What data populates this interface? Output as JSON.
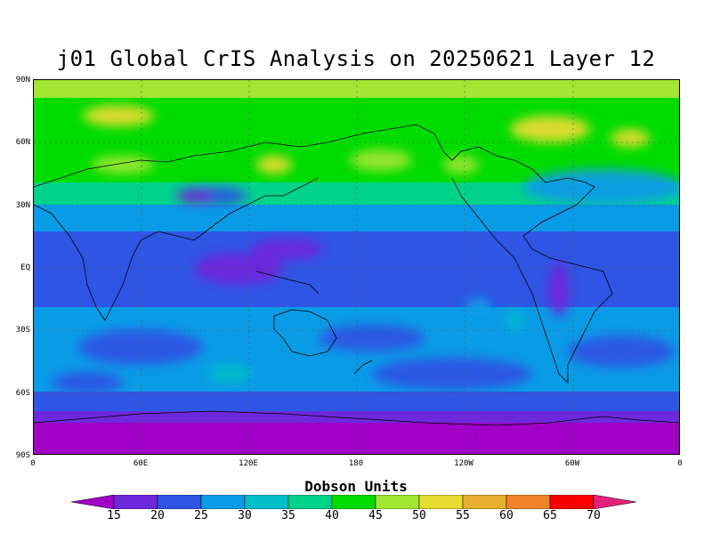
{
  "title": "j01 Global CrIS Analysis on 20250621 Layer 12",
  "lat_labels": [
    "90N",
    "60N",
    "30N",
    "EQ",
    "30S",
    "60S",
    "90S"
  ],
  "lon_labels": [
    "0",
    "60E",
    "120E",
    "180",
    "120W",
    "60W",
    "0"
  ],
  "colorbar": {
    "title": "Dobson Units",
    "ticks": [
      "15",
      "20",
      "25",
      "30",
      "35",
      "40",
      "45",
      "50",
      "55",
      "60",
      "65",
      "70"
    ],
    "colors": [
      "#a000c8",
      "#6e28dc",
      "#2f55e4",
      "#0a9be6",
      "#00bec8",
      "#00d28c",
      "#00dc00",
      "#a0e632",
      "#e6dc32",
      "#e6af2d",
      "#f08228",
      "#fa0000",
      "#e6207a"
    ]
  }
}
